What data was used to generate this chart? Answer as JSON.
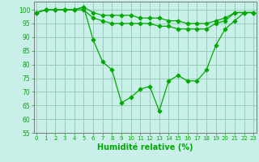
{
  "x": [
    0,
    1,
    2,
    3,
    4,
    5,
    6,
    7,
    8,
    9,
    10,
    11,
    12,
    13,
    14,
    15,
    16,
    17,
    18,
    19,
    20,
    21,
    22,
    23
  ],
  "line1": [
    99,
    100,
    100,
    100,
    100,
    101,
    99,
    98,
    98,
    98,
    98,
    97,
    97,
    97,
    96,
    96,
    95,
    95,
    95,
    96,
    97,
    99,
    99,
    99
  ],
  "line2": [
    99,
    100,
    100,
    100,
    100,
    100,
    97,
    96,
    95,
    95,
    95,
    95,
    95,
    94,
    94,
    93,
    93,
    93,
    93,
    95,
    96,
    99,
    99,
    99
  ],
  "line3": [
    99,
    100,
    100,
    100,
    100,
    101,
    89,
    81,
    78,
    66,
    68,
    71,
    72,
    63,
    74,
    76,
    74,
    74,
    78,
    87,
    93,
    96,
    99,
    99
  ],
  "background_color": "#c8f0e8",
  "grid_color": "#99ccbb",
  "line_color": "#00aa00",
  "xlabel": "Humidité relative (%)",
  "ylim": [
    55,
    103
  ],
  "yticks": [
    55,
    60,
    65,
    70,
    75,
    80,
    85,
    90,
    95,
    100
  ],
  "xticks": [
    0,
    1,
    2,
    3,
    4,
    5,
    6,
    7,
    8,
    9,
    10,
    11,
    12,
    13,
    14,
    15,
    16,
    17,
    18,
    19,
    20,
    21,
    22,
    23
  ],
  "xlim": [
    -0.3,
    23.3
  ]
}
